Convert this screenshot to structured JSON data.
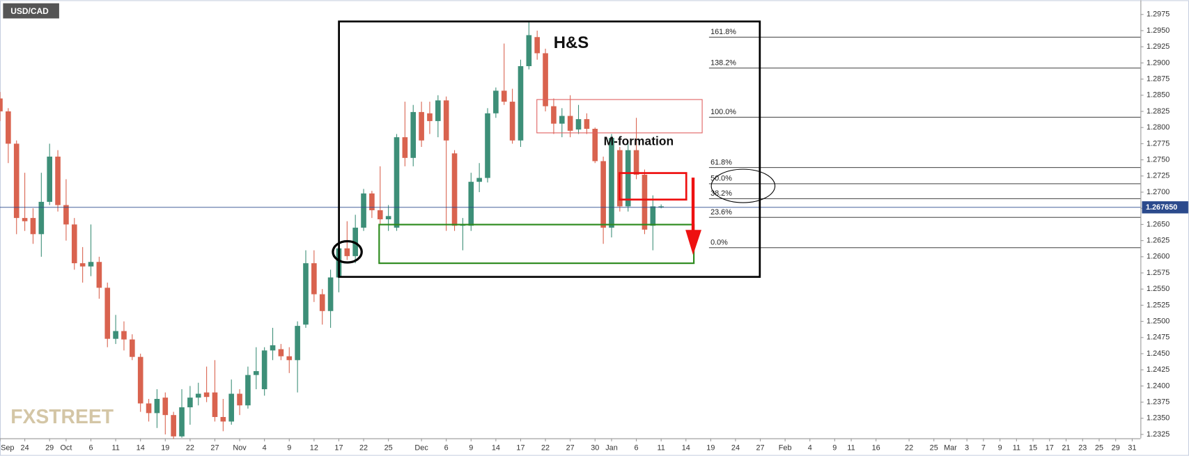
{
  "chart_data": {
    "type": "candlestick",
    "title": "USD/CAD",
    "watermark": "FXSTREET",
    "annotations": {
      "pattern": "H&S",
      "formation": "M-formation"
    },
    "up_color": "#3d8f78",
    "down_color": "#d9634f",
    "grid": false,
    "xlim": [
      0,
      138
    ],
    "xticks": [
      {
        "value": 0,
        "label": "Sep"
      },
      {
        "value": 3,
        "label": "24"
      },
      {
        "value": 6,
        "label": "29"
      },
      {
        "value": 8,
        "label": "Oct"
      },
      {
        "value": 11,
        "label": "6"
      },
      {
        "value": 14,
        "label": "11"
      },
      {
        "value": 17,
        "label": "14"
      },
      {
        "value": 20,
        "label": "19"
      },
      {
        "value": 23,
        "label": "22"
      },
      {
        "value": 26,
        "label": "27"
      },
      {
        "value": 29,
        "label": "Nov"
      },
      {
        "value": 32,
        "label": "4"
      },
      {
        "value": 35,
        "label": "9"
      },
      {
        "value": 38,
        "label": "12"
      },
      {
        "value": 41,
        "label": "17"
      },
      {
        "value": 44,
        "label": "22"
      },
      {
        "value": 47,
        "label": "25"
      },
      {
        "value": 51,
        "label": "Dec"
      },
      {
        "value": 54,
        "label": "6"
      },
      {
        "value": 57,
        "label": "9"
      },
      {
        "value": 60,
        "label": "14"
      },
      {
        "value": 63,
        "label": "17"
      },
      {
        "value": 66,
        "label": "22"
      },
      {
        "value": 69,
        "label": "27"
      },
      {
        "value": 72,
        "label": "30"
      },
      {
        "value": 74,
        "label": "Jan"
      },
      {
        "value": 77,
        "label": "6"
      },
      {
        "value": 80,
        "label": "11"
      },
      {
        "value": 83,
        "label": "14"
      },
      {
        "value": 86,
        "label": "19"
      },
      {
        "value": 89,
        "label": "24"
      },
      {
        "value": 92,
        "label": "27"
      },
      {
        "value": 95,
        "label": "Feb"
      },
      {
        "value": 98,
        "label": "4"
      },
      {
        "value": 101,
        "label": "9"
      },
      {
        "value": 103,
        "label": "11"
      },
      {
        "value": 106,
        "label": "16"
      },
      {
        "value": 110,
        "label": "22"
      },
      {
        "value": 113,
        "label": "25"
      },
      {
        "value": 115,
        "label": "Mar"
      },
      {
        "value": 117,
        "label": "3"
      },
      {
        "value": 119,
        "label": "7"
      },
      {
        "value": 121,
        "label": "9"
      },
      {
        "value": 123,
        "label": "11"
      },
      {
        "value": 125,
        "label": "15"
      },
      {
        "value": 127,
        "label": "17"
      },
      {
        "value": 129,
        "label": "21"
      },
      {
        "value": 131,
        "label": "23"
      },
      {
        "value": 133,
        "label": "25"
      },
      {
        "value": 135,
        "label": "29"
      },
      {
        "value": 137,
        "label": "31"
      }
    ],
    "ylim": [
      1.2319,
      1.2997
    ],
    "yticks": [
      1.2975,
      {
        "value": 1.295,
        "label": "1.2950"
      },
      1.2925,
      {
        "value": 1.29,
        "label": "1.2900"
      },
      1.2875,
      {
        "value": 1.285,
        "label": "1.2850"
      },
      1.2825,
      {
        "value": 1.28,
        "label": "1.2800"
      },
      1.2775,
      {
        "value": 1.275,
        "label": "1.2750"
      },
      1.2725,
      {
        "value": 1.27,
        "label": "1.2700"
      },
      1.2675,
      {
        "value": 1.265,
        "label": "1.2650"
      },
      1.2625,
      {
        "value": 1.26,
        "label": "1.2600"
      },
      1.2575,
      {
        "value": 1.255,
        "label": "1.2550"
      },
      1.2525,
      {
        "value": 1.25,
        "label": "1.2500"
      },
      1.2475,
      {
        "value": 1.245,
        "label": "1.2450"
      },
      1.2425,
      {
        "value": 1.24,
        "label": "1.2400"
      },
      1.2375,
      {
        "value": 1.235,
        "label": "1.2350"
      },
      1.2325
    ],
    "last_price": {
      "value": 1.26765,
      "label": "1.267650"
    },
    "fibonacci": [
      {
        "label": "161.8%",
        "value": 1.294
      },
      {
        "label": "138.2%",
        "value": 1.2892
      },
      {
        "label": "100.0%",
        "value": 1.2816
      },
      {
        "label": "61.8%",
        "value": 1.2738
      },
      {
        "label": "50.0%",
        "value": 1.2713
      },
      {
        "label": "38.2%",
        "value": 1.269
      },
      {
        "label": "23.6%",
        "value": 1.2661
      },
      {
        "label": "0.0%",
        "value": 1.2614
      }
    ],
    "open": [
      1.2845,
      1.2825,
      1.2775,
      1.266,
      1.266,
      1.2635,
      1.2685,
      1.2755,
      1.268,
      1.265,
      1.259,
      1.2585,
      1.2592,
      1.2552,
      1.2473,
      1.2485,
      1.2472,
      1.2445,
      1.2373,
      1.2358,
      1.2382,
      1.2355,
      1.2322,
      1.2367,
      1.2382,
      1.239,
      1.239,
      1.2352,
      1.2345,
      1.2388,
      1.237,
      1.2417,
      1.2395,
      1.2455,
      1.2457,
      1.2446,
      1.244,
      1.2495,
      1.259,
      1.2542,
      1.2516,
      1.2568,
      1.2613,
      1.2601,
      1.2645,
      1.2698,
      1.2672,
      1.2658,
      1.2645,
      1.2785,
      1.2753,
      1.2824,
      1.2822,
      1.281,
      1.2842,
      1.276,
      1.2648,
      1.2648,
      1.2716,
      1.2722,
      1.2822,
      1.2857,
      1.284,
      1.278,
      1.2895,
      1.294,
      1.2915,
      1.2833,
      1.2806,
      1.2818,
      1.2797,
      1.2813,
      1.2798,
      1.2748,
      1.2645,
      1.2765,
      1.2678,
      1.2765,
      1.2727,
      1.2648,
      1.2677
    ],
    "high": [
      1.2855,
      1.283,
      1.278,
      1.273,
      1.2675,
      1.273,
      1.2775,
      1.2765,
      1.272,
      1.266,
      1.2615,
      1.265,
      1.26,
      1.256,
      1.251,
      1.25,
      1.248,
      1.245,
      1.238,
      1.2395,
      1.239,
      1.236,
      1.2395,
      1.24,
      1.2405,
      1.243,
      1.244,
      1.238,
      1.241,
      1.2395,
      1.243,
      1.246,
      1.246,
      1.249,
      1.2465,
      1.246,
      1.25,
      1.261,
      1.261,
      1.255,
      1.258,
      1.2625,
      1.2655,
      1.2665,
      1.2705,
      1.2702,
      1.274,
      1.268,
      1.279,
      1.284,
      1.2835,
      1.284,
      1.284,
      1.285,
      1.2848,
      1.2765,
      1.266,
      1.273,
      1.2745,
      1.283,
      1.2862,
      1.293,
      1.286,
      1.2905,
      1.2965,
      1.295,
      1.2922,
      1.2845,
      1.283,
      1.285,
      1.2835,
      1.2822,
      1.28,
      1.2755,
      1.279,
      1.277,
      1.2775,
      1.2815,
      1.2735,
      1.2695,
      1.2681
    ],
    "low": [
      1.281,
      1.2745,
      1.2635,
      1.264,
      1.262,
      1.26,
      1.268,
      1.267,
      1.2625,
      1.258,
      1.256,
      1.257,
      1.2535,
      1.246,
      1.2465,
      1.2455,
      1.244,
      1.236,
      1.2345,
      1.2335,
      1.2325,
      1.2318,
      1.232,
      1.234,
      1.237,
      1.2375,
      1.2345,
      1.233,
      1.234,
      1.2355,
      1.2365,
      1.2395,
      1.2385,
      1.244,
      1.244,
      1.242,
      1.239,
      1.249,
      1.253,
      1.2495,
      1.249,
      1.2545,
      1.2595,
      1.259,
      1.264,
      1.266,
      1.265,
      1.264,
      1.264,
      1.274,
      1.274,
      1.277,
      1.279,
      1.2785,
      1.264,
      1.264,
      1.261,
      1.264,
      1.27,
      1.2715,
      1.2815,
      1.2835,
      1.2775,
      1.277,
      1.289,
      1.2905,
      1.2825,
      1.279,
      1.2785,
      1.2785,
      1.279,
      1.279,
      1.2745,
      1.262,
      1.263,
      1.267,
      1.267,
      1.272,
      1.2635,
      1.261,
      1.2675
    ],
    "close": [
      1.2825,
      1.2775,
      1.266,
      1.2655,
      1.2635,
      1.2685,
      1.2755,
      1.268,
      1.265,
      1.259,
      1.2585,
      1.2592,
      1.2552,
      1.2473,
      1.2485,
      1.2472,
      1.2445,
      1.2373,
      1.2358,
      1.238,
      1.2355,
      1.2322,
      1.2367,
      1.2382,
      1.2388,
      1.2383,
      1.2352,
      1.2345,
      1.2388,
      1.237,
      1.2417,
      1.2423,
      1.2455,
      1.2463,
      1.2446,
      1.244,
      1.2493,
      1.259,
      1.2542,
      1.2516,
      1.2568,
      1.2613,
      1.2601,
      1.2645,
      1.2698,
      1.2672,
      1.2658,
      1.2663,
      1.2785,
      1.2753,
      1.2824,
      1.278,
      1.281,
      1.2842,
      1.278,
      1.2648,
      1.265,
      1.2716,
      1.2722,
      1.2822,
      1.2857,
      1.284,
      1.278,
      1.2895,
      1.2943,
      1.2915,
      1.2833,
      1.2806,
      1.2818,
      1.2795,
      1.2813,
      1.2798,
      1.2748,
      1.2645,
      1.2784,
      1.2678,
      1.2765,
      1.2727,
      1.2642,
      1.2678,
      1.2678
    ]
  }
}
